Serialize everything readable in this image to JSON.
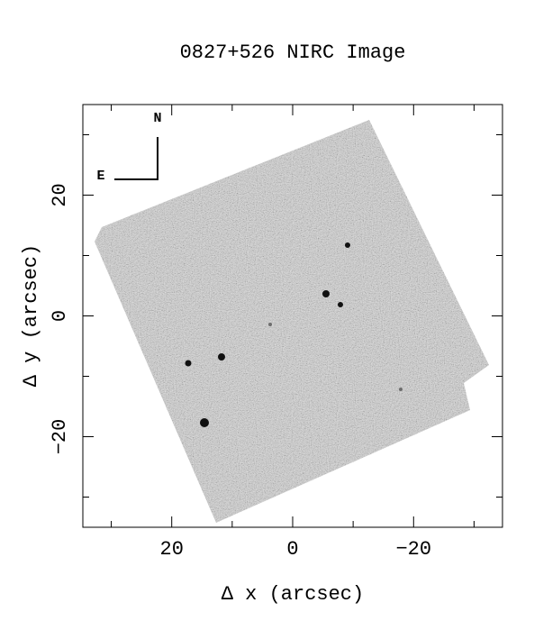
{
  "chart_data": {
    "type": "image",
    "title": "0827+526 NIRC Image",
    "x_label": "Δ x (arcsec)",
    "y_label": "Δ y (arcsec)",
    "annotations": [
      "N",
      "E"
    ],
    "xlim": [
      34.7,
      -34.7
    ],
    "ylim": [
      -35,
      35
    ],
    "xticks": [
      20,
      0,
      {
        "value": -20,
        "label": "−20"
      }
    ],
    "yticks": [
      {
        "value": -20,
        "label": "−20"
      },
      0,
      20
    ],
    "xminorticks": [
      30,
      10,
      -10,
      -30
    ],
    "yminorticks": [
      -30,
      -10,
      10,
      30
    ]
  }
}
